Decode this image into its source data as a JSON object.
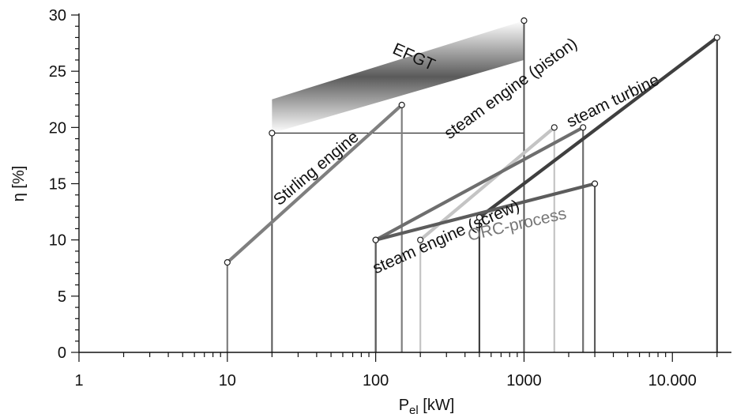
{
  "chart_data": {
    "type": "line",
    "title": "",
    "xlabel": "P",
    "xlabel_sub": "el",
    "xlabel_unit": " [kW]",
    "ylabel": "η [%]",
    "x_scale": "log",
    "xlim": [
      1,
      25000
    ],
    "ylim": [
      0,
      30
    ],
    "grid": false,
    "x_ticks": [
      {
        "value": 1,
        "label": "1"
      },
      {
        "value": 10,
        "label": "10"
      },
      {
        "value": 100,
        "label": "100"
      },
      {
        "value": 1000,
        "label": "1000"
      },
      {
        "value": 10000,
        "label": "10.000"
      }
    ],
    "y_ticks": [
      {
        "value": 0,
        "label": "0"
      },
      {
        "value": 5,
        "label": "5"
      },
      {
        "value": 10,
        "label": "10"
      },
      {
        "value": 15,
        "label": "15"
      },
      {
        "value": 20,
        "label": "20"
      },
      {
        "value": 25,
        "label": "25"
      },
      {
        "value": 30,
        "label": "30"
      }
    ],
    "band": {
      "name": "EFGT",
      "x": [
        20,
        1000
      ],
      "upper": [
        22.5,
        29.5
      ],
      "lower": [
        19.5,
        26
      ]
    },
    "series": [
      {
        "name": "Stirling engine",
        "points": [
          [
            10,
            8
          ],
          [
            150,
            22
          ]
        ],
        "color": "#7f7f7f"
      },
      {
        "name": "steam engine (piston)",
        "points": [
          [
            200,
            10
          ],
          [
            1600,
            20
          ]
        ],
        "color": "#c4c4c4"
      },
      {
        "name": "steam engine (screw)",
        "points": [
          [
            100,
            10
          ],
          [
            2500,
            20
          ]
        ],
        "color": "#6e6e6e"
      },
      {
        "name": "steam turbine",
        "points": [
          [
            500,
            12
          ],
          [
            20000,
            28
          ]
        ],
        "color": "#3f3f3f"
      },
      {
        "name": "ORC-process",
        "points": [
          [
            100,
            10
          ],
          [
            3000,
            15
          ]
        ],
        "color": "#5c5c5c"
      }
    ],
    "annotations": [
      {
        "text": "EFGT",
        "x": 180,
        "y": 26.2,
        "angle": 24,
        "color": "#111111"
      },
      {
        "text": "Stirling engine",
        "x": 40,
        "y": 16.3,
        "angle": -40,
        "color": "#111111"
      },
      {
        "text": "steam engine (piston)",
        "x": 820,
        "y": 23.4,
        "angle": -36,
        "color": "#111111"
      },
      {
        "text": "steam turbine",
        "x": 4000,
        "y": 22.3,
        "angle": -26,
        "color": "#111111"
      },
      {
        "text": "steam engine (screw)",
        "x": 300,
        "y": 10.2,
        "angle": -24,
        "color": "#111111"
      },
      {
        "text": "ORC-process",
        "x": 900,
        "y": 11.3,
        "angle": -13,
        "color": "#777777"
      }
    ]
  }
}
